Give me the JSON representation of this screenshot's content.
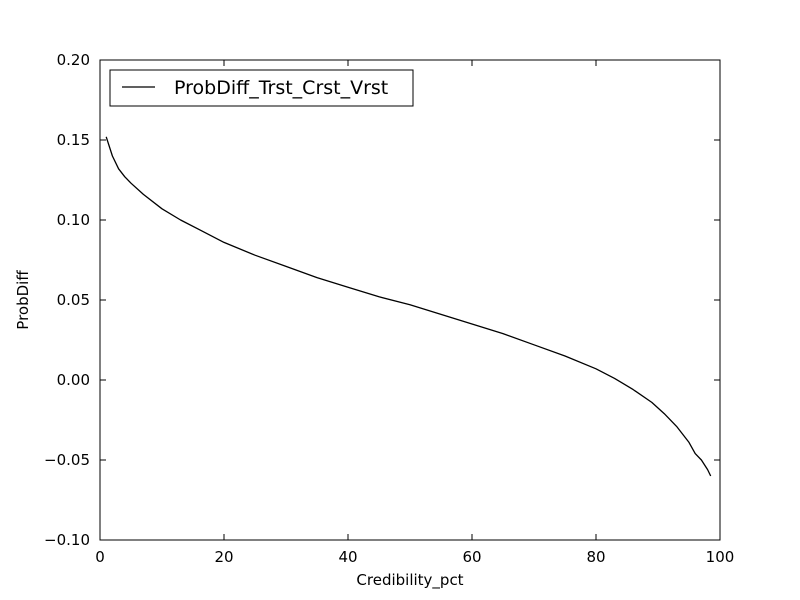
{
  "chart_data": {
    "type": "line",
    "title": "",
    "xlabel": "Credibility_pct",
    "ylabel": "ProbDiff",
    "xlim": [
      0,
      100
    ],
    "ylim": [
      -0.1,
      0.2
    ],
    "xticks": [
      0,
      20,
      40,
      60,
      80,
      100
    ],
    "xtick_labels": [
      "0",
      "20",
      "40",
      "60",
      "80",
      "100"
    ],
    "yticks": [
      -0.1,
      -0.05,
      0.0,
      0.05,
      0.1,
      0.15,
      0.2
    ],
    "ytick_labels": [
      "−0.10",
      "−0.05",
      "0.00",
      "0.05",
      "0.10",
      "0.15",
      "0.20"
    ],
    "grid": false,
    "legend_position": "top-left",
    "series_color": "#000000",
    "series": [
      {
        "name": "ProbDiff_Trst_Crst_Vrst",
        "x": [
          1,
          2,
          3,
          4,
          5,
          7,
          10,
          13,
          16,
          20,
          25,
          30,
          35,
          40,
          45,
          50,
          55,
          60,
          65,
          70,
          75,
          80,
          83,
          86,
          89,
          91,
          93,
          95,
          96,
          97,
          98,
          98.5
        ],
        "y": [
          0.152,
          0.14,
          0.132,
          0.127,
          0.123,
          0.116,
          0.107,
          0.1,
          0.094,
          0.086,
          0.078,
          0.071,
          0.064,
          0.058,
          0.052,
          0.047,
          0.041,
          0.035,
          0.029,
          0.022,
          0.015,
          0.007,
          0.001,
          -0.006,
          -0.014,
          -0.021,
          -0.029,
          -0.039,
          -0.046,
          -0.05,
          -0.056,
          -0.06
        ]
      }
    ]
  }
}
